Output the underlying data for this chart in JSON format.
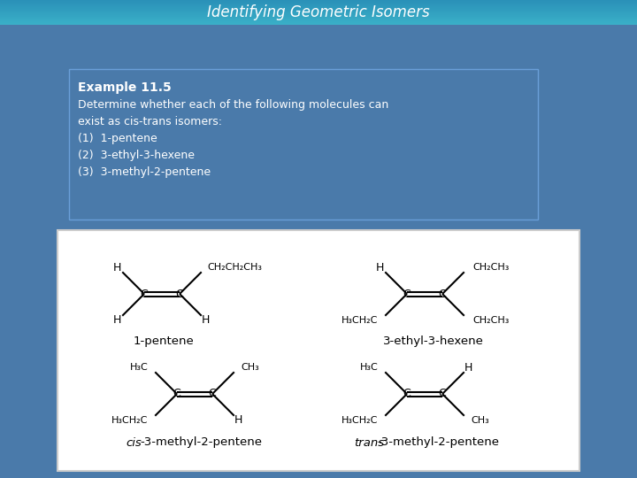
{
  "title": "Identifying Geometric Isomers",
  "title_color": "white",
  "title_fontsize": 12,
  "main_bg": "#4a7aaa",
  "title_bar_color": "#3ab0c8",
  "example_box_bg": "#4a7aaa",
  "example_box_text_color": "white",
  "example_title": "Example 11.5",
  "example_lines": [
    "Determine whether each of the following molecules can",
    "exist as cis-trans isomers:",
    "(1)  1-pentene",
    "(2)  3-ethyl-3-hexene",
    "(3)  3-methyl-2-pentene"
  ],
  "label_1": "1-pentene",
  "label_2": "3-ethyl-3-hexene",
  "label_3_italic": "cis",
  "label_3_normal": "-3-methyl-2-pentene",
  "label_4_italic": "trans",
  "label_4_normal": "-3-methyl-2-pentene"
}
